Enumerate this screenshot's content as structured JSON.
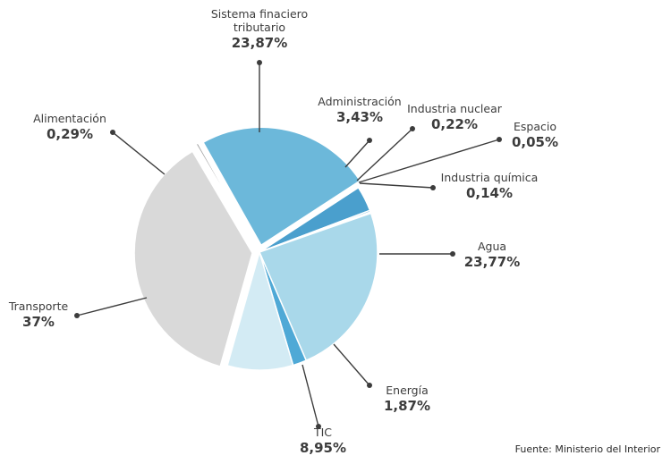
{
  "chart_data": {
    "type": "pie",
    "title": "",
    "slices": [
      {
        "id": "sistema",
        "name_lines": [
          "Sistema finaciero",
          "tributario"
        ],
        "value": 23.87,
        "value_label": "23,87%",
        "color": "#6cb8da"
      },
      {
        "id": "administracion",
        "name_lines": [
          "Administración"
        ],
        "value": 3.43,
        "value_label": "3,43%",
        "color": "#4a9fcd"
      },
      {
        "id": "nuclear",
        "name_lines": [
          "Industria nuclear"
        ],
        "value": 0.22,
        "value_label": "0,22%",
        "color": "#4a9fcd"
      },
      {
        "id": "espacio",
        "name_lines": [
          "Espacio"
        ],
        "value": 0.05,
        "value_label": "0,05%",
        "color": "#4a9fcd"
      },
      {
        "id": "quimica",
        "name_lines": [
          "Industria química"
        ],
        "value": 0.14,
        "value_label": "0,14%",
        "color": "#4a9fcd"
      },
      {
        "id": "agua",
        "name_lines": [
          "Agua"
        ],
        "value": 23.77,
        "value_label": "23,77%",
        "color": "#a9d8ea"
      },
      {
        "id": "energia",
        "name_lines": [
          "Energía"
        ],
        "value": 1.87,
        "value_label": "1,87%",
        "color": "#4fa9d6"
      },
      {
        "id": "tic",
        "name_lines": [
          "TIC"
        ],
        "value": 8.95,
        "value_label": "8,95%",
        "color": "#d3ebf4"
      },
      {
        "id": "transporte",
        "name_lines": [
          "Transporte"
        ],
        "value": 37,
        "value_label": "37%",
        "color": "#d9d9d9"
      },
      {
        "id": "alimentacion",
        "name_lines": [
          "Alimentación"
        ],
        "value": 0.29,
        "value_label": "0,29%",
        "color": "#9a9a9a"
      }
    ]
  },
  "source": "Fuente: Ministerio del Interior"
}
